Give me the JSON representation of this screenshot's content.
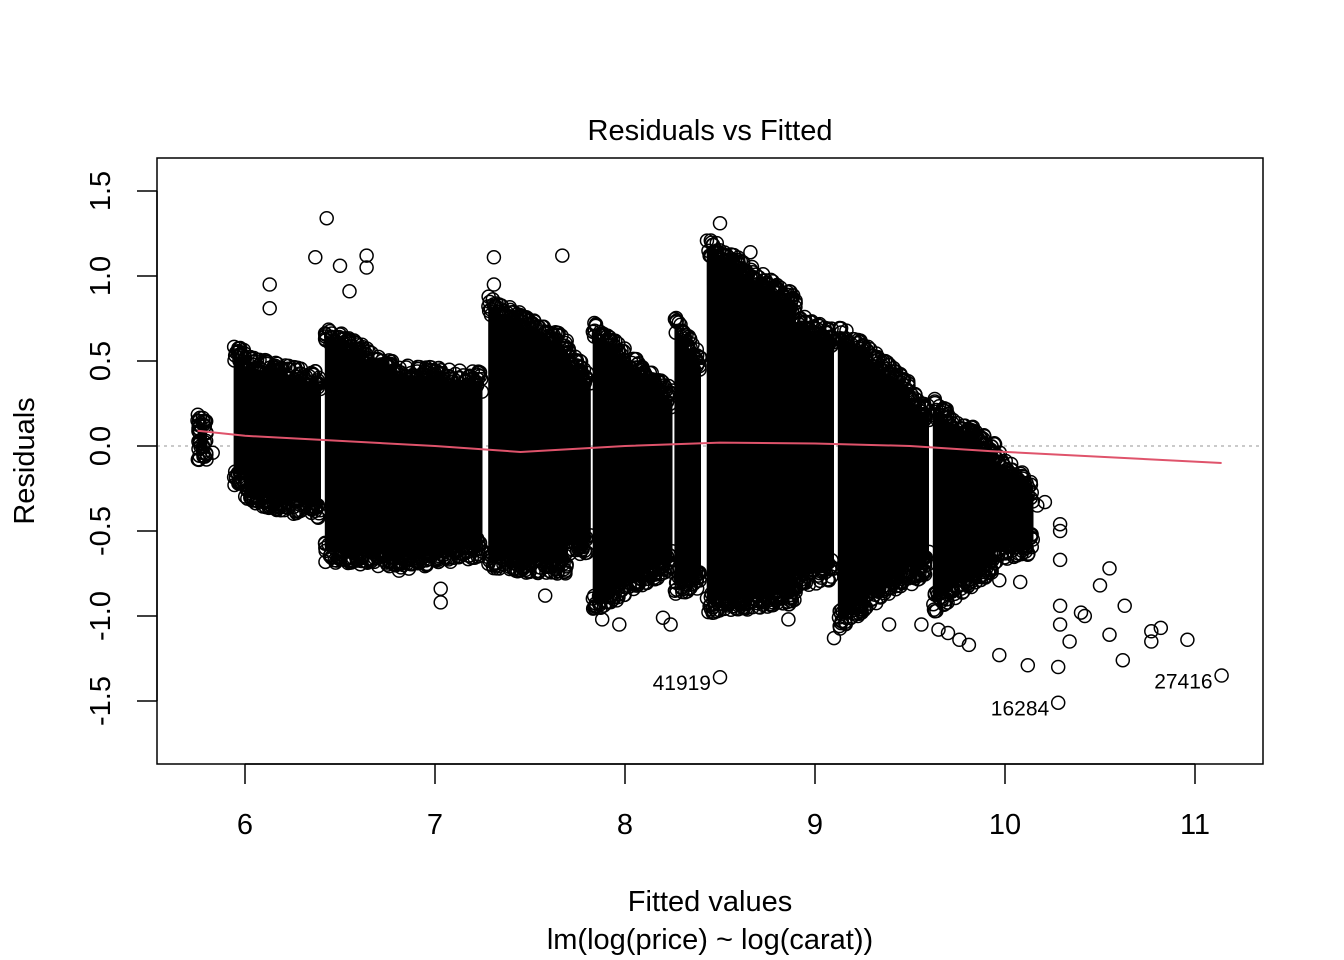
{
  "chart_data": {
    "type": "scatter",
    "title": "Residuals vs Fitted",
    "xlabel": "Fitted values",
    "subtitle": "lm(log(price) ~ log(carat))",
    "ylabel": "Residuals",
    "xlim": [
      5.55,
      11.37
    ],
    "ylim": [
      -1.87,
      1.7
    ],
    "x_ticks": [
      6,
      7,
      8,
      9,
      10,
      11
    ],
    "x_tick_labels": [
      "6",
      "7",
      "8",
      "9",
      "10",
      "11"
    ],
    "y_ticks": [
      -1.5,
      -1.0,
      -0.5,
      0.0,
      0.5,
      1.0,
      1.5
    ],
    "y_tick_labels": [
      "-1.5",
      "-1.0",
      "-0.5",
      "0.0",
      "0.5",
      "1.0",
      "1.5"
    ],
    "reference_line": {
      "y": 0,
      "color": "#aaaaaa",
      "style": "dotted"
    },
    "smoother": {
      "color": "#DF536B",
      "x": [
        5.75,
        6.0,
        7.0,
        7.45,
        8.0,
        8.5,
        9.0,
        9.5,
        9.92,
        11.14
      ],
      "y": [
        0.09,
        0.06,
        0.0,
        -0.035,
        0.0,
        0.02,
        0.015,
        0.0,
        -0.03,
        -0.1
      ]
    },
    "dense_bands": [
      {
        "x": [
          5.75,
          5.8
        ],
        "top": [
          0.15,
          0.15
        ],
        "bottom": [
          -0.05,
          -0.05
        ]
      },
      {
        "x": [
          5.94,
          6.0
        ],
        "top": [
          0.55,
          0.55
        ],
        "bottom": [
          -0.2,
          -0.2
        ]
      },
      {
        "x": [
          6.0,
          6.4
        ],
        "top": [
          0.5,
          0.4
        ],
        "bottom": [
          -0.3,
          -0.4
        ]
      },
      {
        "x": [
          6.42,
          6.8
        ],
        "top": [
          0.68,
          0.45
        ],
        "bottom": [
          -0.65,
          -0.68
        ]
      },
      {
        "x": [
          6.8,
          7.25
        ],
        "top": [
          0.45,
          0.4
        ],
        "bottom": [
          -0.7,
          -0.62
        ]
      },
      {
        "x": [
          7.28,
          7.7
        ],
        "top": [
          0.85,
          0.6
        ],
        "bottom": [
          -0.7,
          -0.72
        ]
      },
      {
        "x": [
          7.7,
          7.82
        ],
        "top": [
          0.55,
          0.4
        ],
        "bottom": [
          -0.6,
          -0.6
        ]
      },
      {
        "x": [
          7.83,
          8.25
        ],
        "top": [
          0.7,
          0.3
        ],
        "bottom": [
          -0.95,
          -0.7
        ]
      },
      {
        "x": [
          8.26,
          8.4
        ],
        "top": [
          0.75,
          0.5
        ],
        "bottom": [
          -0.85,
          -0.8
        ]
      },
      {
        "x": [
          8.43,
          8.9
        ],
        "top": [
          1.2,
          0.85
        ],
        "bottom": [
          -0.95,
          -0.9
        ]
      },
      {
        "x": [
          8.9,
          9.1
        ],
        "top": [
          0.75,
          0.65
        ],
        "bottom": [
          -0.8,
          -0.75
        ]
      },
      {
        "x": [
          9.12,
          9.5
        ],
        "top": [
          0.7,
          0.35
        ],
        "bottom": [
          -1.05,
          -0.75
        ]
      },
      {
        "x": [
          9.5,
          9.6
        ],
        "top": [
          0.3,
          0.2
        ],
        "bottom": [
          -0.8,
          -0.7
        ]
      },
      {
        "x": [
          9.62,
          9.95
        ],
        "top": [
          0.25,
          -0.02
        ],
        "bottom": [
          -0.95,
          -0.7
        ]
      },
      {
        "x": [
          9.95,
          10.15
        ],
        "top": [
          -0.05,
          -0.25
        ],
        "bottom": [
          -0.65,
          -0.6
        ]
      }
    ],
    "points": [
      [
        5.75,
        0.15
      ],
      [
        5.83,
        -0.04
      ],
      [
        6.13,
        0.81
      ],
      [
        6.13,
        0.95
      ],
      [
        6.43,
        1.34
      ],
      [
        6.37,
        1.11
      ],
      [
        6.5,
        1.06
      ],
      [
        6.55,
        0.91
      ],
      [
        6.64,
        1.12
      ],
      [
        6.64,
        1.05
      ],
      [
        7.03,
        -0.92
      ],
      [
        7.03,
        -0.84
      ],
      [
        7.31,
        1.11
      ],
      [
        7.31,
        0.95
      ],
      [
        7.67,
        1.12
      ],
      [
        8.5,
        1.31
      ],
      [
        8.66,
        1.14
      ],
      [
        9.1,
        -1.13
      ],
      [
        9.56,
        -1.05
      ],
      [
        9.97,
        -1.23
      ],
      [
        10.12,
        -1.29
      ],
      [
        10.28,
        -1.3
      ],
      [
        10.34,
        -1.15
      ],
      [
        10.5,
        -0.82
      ],
      [
        10.55,
        -0.72
      ],
      [
        10.55,
        -1.11
      ],
      [
        10.63,
        -0.94
      ],
      [
        10.62,
        -1.26
      ],
      [
        10.77,
        -1.09
      ],
      [
        10.82,
        -1.07
      ],
      [
        10.77,
        -1.15
      ],
      [
        10.96,
        -1.14
      ],
      [
        10.4,
        -0.98
      ],
      [
        10.29,
        -0.46
      ],
      [
        10.29,
        -0.5
      ],
      [
        10.29,
        -0.67
      ],
      [
        10.29,
        -0.94
      ],
      [
        10.29,
        -1.05
      ],
      [
        10.17,
        -0.35
      ],
      [
        9.76,
        -1.14
      ],
      [
        9.81,
        -1.17
      ],
      [
        9.39,
        -1.05
      ],
      [
        8.86,
        -1.02
      ],
      [
        7.97,
        -1.05
      ],
      [
        8.24,
        -1.05
      ],
      [
        10.14,
        -0.52
      ],
      [
        9.97,
        -0.79
      ],
      [
        10.21,
        -0.33
      ],
      [
        10.08,
        -0.8
      ],
      [
        10.42,
        -1.0
      ],
      [
        9.65,
        -1.08
      ],
      [
        9.7,
        -1.1
      ],
      [
        8.71,
        -0.95
      ],
      [
        8.2,
        -1.01
      ],
      [
        7.58,
        -0.88
      ],
      [
        7.88,
        -1.02
      ]
    ],
    "labeled_points": [
      {
        "label": "41919",
        "x": 8.5,
        "y": -1.36
      },
      {
        "label": "16284",
        "x": 10.28,
        "y": -1.51
      },
      {
        "label": "27416",
        "x": 11.14,
        "y": -1.35
      }
    ]
  }
}
